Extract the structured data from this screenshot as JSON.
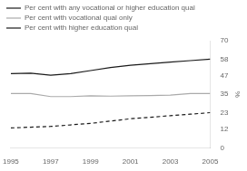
{
  "chart_data": {
    "type": "line",
    "x": [
      1995,
      1996,
      1997,
      1998,
      1999,
      2000,
      2001,
      2002,
      2003,
      2004,
      2005
    ],
    "series": [
      {
        "name": "Per cent with any vocational or higher education qual",
        "color": "#1a1a1a",
        "line_style": "solid",
        "values": [
          48.5,
          48.8,
          47.5,
          48.5,
          50.5,
          52.5,
          54.0,
          55.0,
          56.0,
          57.0,
          58.0
        ]
      },
      {
        "name": "Per cent with vocational qual only",
        "color": "#aaaaaa",
        "line_style": "solid",
        "values": [
          35.5,
          35.5,
          33.5,
          33.5,
          34.0,
          33.8,
          34.0,
          34.2,
          34.5,
          35.5,
          35.5
        ]
      },
      {
        "name": "Per cent with higher education qual",
        "color": "#1a1a1a",
        "line_style": "dashed",
        "values": [
          13.0,
          13.5,
          14.0,
          15.0,
          16.0,
          17.5,
          19.0,
          20.0,
          21.0,
          22.0,
          23.0
        ]
      }
    ],
    "xlim": [
      1995,
      2005
    ],
    "xticks": [
      1995,
      1997,
      1999,
      2001,
      2003,
      2005
    ],
    "ylim": [
      0,
      70
    ],
    "yticks": [
      0,
      12,
      23,
      35,
      47,
      58,
      70
    ],
    "ylabel": "%",
    "grid": false,
    "legend": "upper left"
  }
}
